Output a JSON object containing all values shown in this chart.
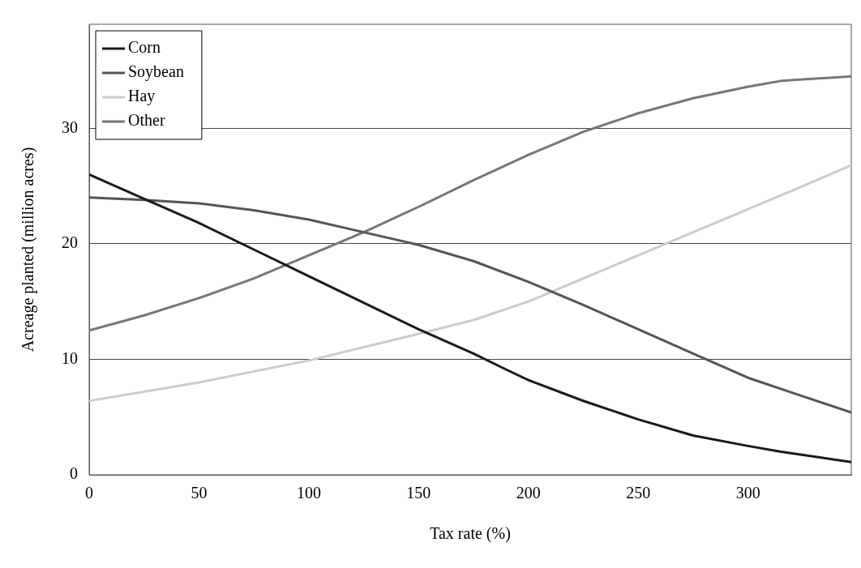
{
  "chart_data": {
    "type": "line",
    "xlabel": "Tax rate (%)",
    "ylabel": "Acreage planted (million acres)",
    "xlim": [
      0,
      347
    ],
    "xticks": [
      0,
      50,
      100,
      150,
      200,
      250,
      300
    ],
    "ylim": [
      0,
      39
    ],
    "yticks": [
      0,
      10,
      20,
      30
    ],
    "grid": "y",
    "legend": "top left",
    "marker": "none",
    "line_style": "solid",
    "series": [
      {
        "name": "Corn",
        "color": "#1a1a1a",
        "x": [
          0,
          25,
          50,
          75,
          100,
          125,
          150,
          175,
          190,
          200,
          225,
          250,
          275,
          300,
          315,
          347
        ],
        "values": [
          26,
          23.9,
          21.8,
          19.5,
          17.2,
          14.9,
          12.6,
          10.5,
          9.1,
          8.2,
          6.4,
          4.8,
          3.4,
          2.5,
          2,
          1.1
        ]
      },
      {
        "name": "Soybean",
        "color": "#555555",
        "x": [
          0,
          25,
          50,
          75,
          100,
          125,
          150,
          175,
          200,
          225,
          250,
          275,
          300,
          325,
          347
        ],
        "values": [
          24,
          23.8,
          23.5,
          22.9,
          22.1,
          21,
          19.9,
          18.5,
          16.7,
          14.7,
          12.6,
          10.5,
          8.4,
          6.8,
          5.4
        ]
      },
      {
        "name": "Hay",
        "color": "#cccccc",
        "x": [
          0,
          50,
          100,
          150,
          175,
          200,
          225,
          250,
          275,
          300,
          325,
          347
        ],
        "values": [
          6.4,
          8,
          9.9,
          12.2,
          13.4,
          15,
          17,
          19,
          21,
          23,
          25,
          26.8
        ]
      },
      {
        "name": "Other",
        "color": "#777777",
        "x": [
          0,
          25,
          50,
          75,
          100,
          125,
          150,
          175,
          200,
          225,
          250,
          275,
          300,
          315,
          347
        ],
        "values": [
          12.5,
          13.8,
          15.3,
          17,
          19,
          21,
          23.2,
          25.5,
          27.7,
          29.7,
          31.3,
          32.6,
          33.6,
          34.1,
          34.5
        ]
      }
    ]
  }
}
